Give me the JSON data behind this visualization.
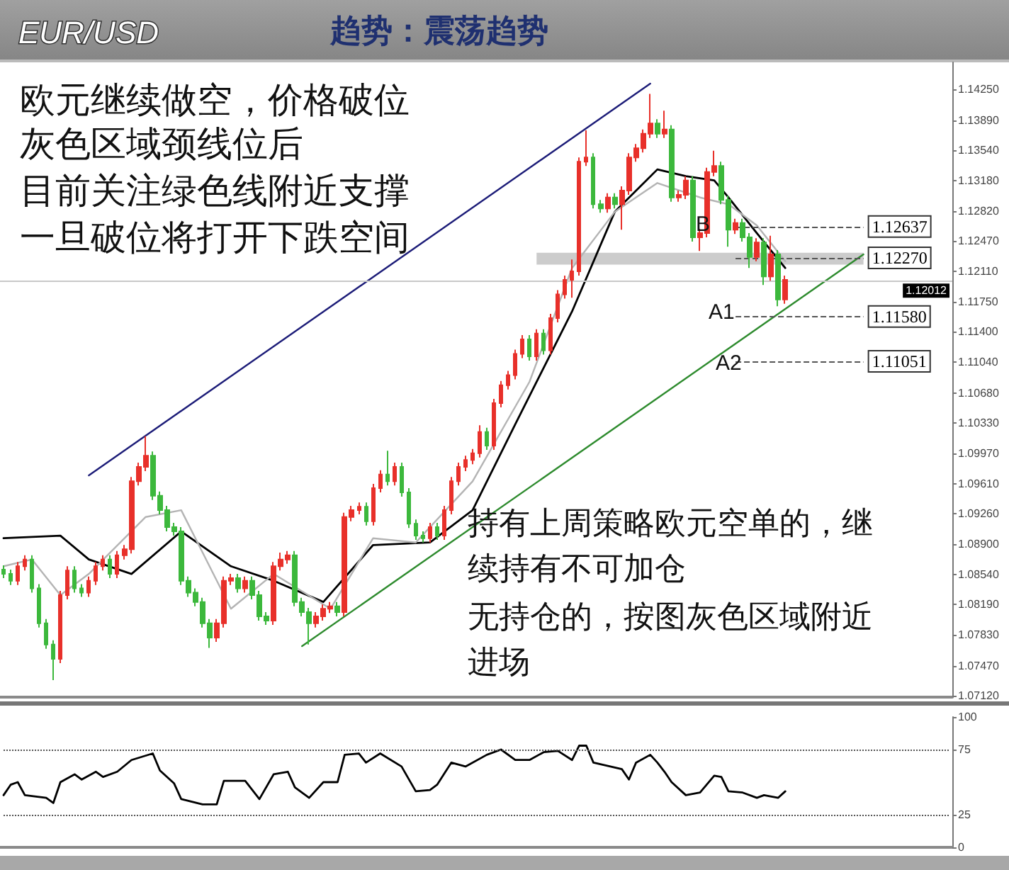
{
  "chart_data": [
    {
      "type": "candlestick",
      "title": "EUR/USD",
      "subtitle": "趋势：震荡趋势",
      "tick_labels": "y",
      "marker": "none",
      "categories": [
        null,
        null,
        null,
        null,
        null,
        null,
        null,
        null,
        null,
        null,
        null,
        null,
        null,
        null,
        null,
        null,
        null,
        null,
        null,
        null,
        null,
        null,
        null,
        null,
        null,
        null,
        null,
        null,
        null,
        null,
        null,
        null,
        null,
        null,
        null,
        null,
        null,
        null,
        null,
        null,
        null,
        null,
        null,
        null,
        null,
        null,
        null,
        null,
        null,
        null,
        null,
        null,
        null,
        null,
        null,
        null,
        null,
        null,
        null,
        null,
        null,
        null,
        null,
        null,
        null,
        null,
        null,
        null,
        null,
        null,
        null,
        null,
        null,
        null,
        null,
        null,
        null,
        null,
        null,
        null,
        null,
        null,
        null,
        null,
        null,
        null,
        null,
        null,
        null,
        null,
        null,
        null,
        null,
        null,
        null,
        null,
        null,
        null,
        null,
        null,
        null,
        null,
        null,
        null,
        null,
        null,
        null,
        null,
        null,
        null,
        null,
        null,
        null,
        null,
        null,
        null,
        null,
        null,
        null,
        null,
        null,
        null,
        null,
        null,
        null,
        null,
        null,
        null,
        null,
        null,
        null,
        null,
        null,
        null
      ],
      "ohlc": [
        [
          1.086,
          1.0865,
          1.085,
          1.0855
        ],
        [
          1.0855,
          1.086,
          1.0842,
          1.0847
        ],
        [
          1.0847,
          1.0869,
          1.0842,
          1.0864
        ],
        [
          1.0864,
          1.0877,
          1.0859,
          1.0872
        ],
        [
          1.0872,
          1.0877,
          1.0833,
          1.0838
        ],
        [
          1.0838,
          1.0843,
          1.0792,
          1.0797
        ],
        [
          1.0797,
          1.0802,
          1.0767,
          1.0772
        ],
        [
          1.0772,
          1.0777,
          1.073,
          1.0755
        ],
        [
          1.0755,
          1.0835,
          1.075,
          1.083
        ],
        [
          1.083,
          1.0864,
          1.0825,
          1.0859
        ],
        [
          1.0859,
          1.0864,
          1.0833,
          1.0838
        ],
        [
          1.0838,
          1.0843,
          1.0828,
          1.0833
        ],
        [
          1.0833,
          1.0852,
          1.0828,
          1.0847
        ],
        [
          1.0847,
          1.0869,
          1.0842,
          1.0864
        ],
        [
          1.0864,
          1.0877,
          1.0859,
          1.0872
        ],
        [
          1.0872,
          1.0877,
          1.085,
          1.0855
        ],
        [
          1.0855,
          1.0882,
          1.085,
          1.0877
        ],
        [
          1.0877,
          1.0889,
          1.0872,
          1.0884
        ],
        [
          1.0884,
          1.0969,
          1.0879,
          1.0964
        ],
        [
          1.0964,
          1.0986,
          1.0959,
          1.0981
        ],
        [
          1.0981,
          1.1017,
          1.0976,
          1.0994
        ],
        [
          1.0994,
          1.0999,
          1.0942,
          1.0947
        ],
        [
          1.0947,
          1.0952,
          1.0925,
          1.093
        ],
        [
          1.093,
          1.0935,
          1.0905,
          1.091
        ],
        [
          1.091,
          1.0915,
          1.09,
          1.0905
        ],
        [
          1.0905,
          1.091,
          1.0842,
          1.0847
        ],
        [
          1.0847,
          1.0852,
          1.0828,
          1.0833
        ],
        [
          1.0833,
          1.0838,
          1.0817,
          1.0822
        ],
        [
          1.0822,
          1.0827,
          1.0792,
          1.0797
        ],
        [
          1.0797,
          1.0802,
          1.0768,
          1.078
        ],
        [
          1.078,
          1.0802,
          1.0775,
          1.0797
        ],
        [
          1.0797,
          1.0852,
          1.0792,
          1.0847
        ],
        [
          1.0847,
          1.0855,
          1.0842,
          1.085
        ],
        [
          1.085,
          1.0855,
          1.0833,
          1.0838
        ],
        [
          1.0838,
          1.0852,
          1.0833,
          1.0847
        ],
        [
          1.0847,
          1.0852,
          1.0825,
          1.083
        ],
        [
          1.083,
          1.0835,
          1.08,
          1.0805
        ],
        [
          1.0805,
          1.081,
          1.0795,
          1.08
        ],
        [
          1.08,
          1.0869,
          1.0795,
          1.0864
        ],
        [
          1.0864,
          1.088,
          1.0859,
          1.0872
        ],
        [
          1.0872,
          1.0882,
          1.0867,
          1.0877
        ],
        [
          1.0877,
          1.0882,
          1.0817,
          1.0822
        ],
        [
          1.0822,
          1.0827,
          1.0805,
          1.081
        ],
        [
          1.081,
          1.0815,
          1.0772,
          1.0797
        ],
        [
          1.0797,
          1.081,
          1.0792,
          1.0805
        ],
        [
          1.0805,
          1.0819,
          1.08,
          1.0814
        ],
        [
          1.0814,
          1.0822,
          1.0809,
          1.0817
        ],
        [
          1.0817,
          1.0822,
          1.0805,
          1.081
        ],
        [
          1.081,
          1.0927,
          1.0805,
          1.0922
        ],
        [
          1.0922,
          1.0935,
          1.0917,
          1.093
        ],
        [
          1.093,
          1.0939,
          1.0925,
          1.0934
        ],
        [
          1.0934,
          1.0939,
          1.0912,
          1.0917
        ],
        [
          1.0917,
          1.0961,
          1.0912,
          1.0956
        ],
        [
          1.0956,
          1.0977,
          1.0951,
          1.0972
        ],
        [
          1.0972,
          1.1,
          1.0959,
          1.0964
        ],
        [
          1.0964,
          1.0986,
          1.0959,
          1.0981
        ],
        [
          1.0981,
          1.0986,
          1.0946,
          1.0951
        ],
        [
          1.0951,
          1.0956,
          1.0909,
          1.0914
        ],
        [
          1.0914,
          1.0919,
          1.0895,
          1.09
        ],
        [
          1.09,
          1.0905,
          1.0892,
          1.0897
        ],
        [
          1.0897,
          1.0915,
          1.0892,
          1.091
        ],
        [
          1.091,
          1.0915,
          1.0895,
          1.09
        ],
        [
          1.09,
          1.0935,
          1.0895,
          1.093
        ],
        [
          1.093,
          1.0969,
          1.0925,
          1.0964
        ],
        [
          1.0964,
          1.0986,
          1.0959,
          1.0981
        ],
        [
          1.0981,
          1.0994,
          1.0976,
          1.0989
        ],
        [
          1.0989,
          1.1002,
          1.0984,
          1.0997
        ],
        [
          1.0997,
          1.103,
          1.0992,
          1.1022
        ],
        [
          1.1022,
          1.1027,
          1.1001,
          1.1006
        ],
        [
          1.1006,
          1.1061,
          1.1001,
          1.1056
        ],
        [
          1.1056,
          1.1082,
          1.1051,
          1.1077
        ],
        [
          1.1077,
          1.1094,
          1.1072,
          1.1089
        ],
        [
          1.1089,
          1.1119,
          1.1084,
          1.1114
        ],
        [
          1.1114,
          1.1136,
          1.1109,
          1.1131
        ],
        [
          1.1131,
          1.1136,
          1.1106,
          1.1111
        ],
        [
          1.1111,
          1.1143,
          1.1106,
          1.1138
        ],
        [
          1.1138,
          1.1143,
          1.1113,
          1.1118
        ],
        [
          1.1118,
          1.1161,
          1.1113,
          1.1156
        ],
        [
          1.1156,
          1.1189,
          1.1151,
          1.1184
        ],
        [
          1.1184,
          1.1206,
          1.1179,
          1.1201
        ],
        [
          1.1201,
          1.1225,
          1.118,
          1.1211
        ],
        [
          1.1211,
          1.1345,
          1.1206,
          1.134
        ],
        [
          1.134,
          1.1377,
          1.1335,
          1.1345
        ],
        [
          1.1345,
          1.135,
          1.1285,
          1.129
        ],
        [
          1.129,
          1.1295,
          1.128,
          1.1285
        ],
        [
          1.1285,
          1.1303,
          1.128,
          1.1298
        ],
        [
          1.1298,
          1.1303,
          1.1285,
          1.129
        ],
        [
          1.129,
          1.1311,
          1.126,
          1.1306
        ],
        [
          1.1306,
          1.135,
          1.1301,
          1.1345
        ],
        [
          1.1345,
          1.1361,
          1.134,
          1.1356
        ],
        [
          1.1356,
          1.1378,
          1.1351,
          1.1373
        ],
        [
          1.1373,
          1.142,
          1.1368,
          1.1385
        ],
        [
          1.1385,
          1.139,
          1.1368,
          1.1373
        ],
        [
          1.1373,
          1.14,
          1.1368,
          1.1378
        ],
        [
          1.1378,
          1.1383,
          1.1293,
          1.1298
        ],
        [
          1.1298,
          1.1306,
          1.1293,
          1.1301
        ],
        [
          1.1301,
          1.1323,
          1.1296,
          1.1318
        ],
        [
          1.1318,
          1.1323,
          1.1246,
          1.1251
        ],
        [
          1.1251,
          1.1261,
          1.1235,
          1.1256
        ],
        [
          1.1256,
          1.1333,
          1.1251,
          1.1328
        ],
        [
          1.1328,
          1.1353,
          1.1323,
          1.1335
        ],
        [
          1.1335,
          1.134,
          1.129,
          1.1295
        ],
        [
          1.1295,
          1.13,
          1.124,
          1.126
        ],
        [
          1.126,
          1.1273,
          1.1255,
          1.1268
        ],
        [
          1.1268,
          1.1273,
          1.1246,
          1.1251
        ],
        [
          1.1251,
          1.1256,
          1.1215,
          1.1228
        ],
        [
          1.1228,
          1.125,
          1.1223,
          1.1245
        ],
        [
          1.1245,
          1.125,
          1.1195,
          1.1205
        ],
        [
          1.1205,
          1.1253,
          1.12,
          1.1231
        ],
        [
          1.1231,
          1.1236,
          1.117,
          1.1178
        ],
        [
          1.1178,
          1.1206,
          1.1173,
          1.1201
        ],
        null,
        null,
        null,
        null,
        null,
        null,
        null,
        null,
        null,
        null,
        null,
        null,
        null,
        null,
        null,
        null,
        null,
        null,
        null,
        null,
        null,
        null,
        null
      ],
      "colors": [
        "#3cb83c",
        "#3cb83c",
        "#e8302a",
        "#e8302a",
        "#3cb83c",
        "#3cb83c",
        "#3cb83c",
        "#3cb83c",
        "#e8302a",
        "#e8302a",
        "#3cb83c",
        "#3cb83c",
        "#e8302a",
        "#e8302a",
        "#e8302a",
        "#3cb83c",
        "#e8302a",
        "#e8302a",
        "#e8302a",
        "#e8302a",
        "#e8302a",
        "#3cb83c",
        "#3cb83c",
        "#3cb83c",
        "#3cb83c",
        "#3cb83c",
        "#3cb83c",
        "#3cb83c",
        "#3cb83c",
        "#3cb83c",
        "#e8302a",
        "#e8302a",
        "#e8302a",
        "#3cb83c",
        "#e8302a",
        "#3cb83c",
        "#3cb83c",
        "#3cb83c",
        "#e8302a",
        "#e8302a",
        "#e8302a",
        "#3cb83c",
        "#3cb83c",
        "#3cb83c",
        "#e8302a",
        "#e8302a",
        "#e8302a",
        "#3cb83c",
        "#e8302a",
        "#e8302a",
        "#e8302a",
        "#3cb83c",
        "#e8302a",
        "#e8302a",
        "#3cb83c",
        "#e8302a",
        "#3cb83c",
        "#3cb83c",
        "#3cb83c",
        "#3cb83c",
        "#e8302a",
        "#3cb83c",
        "#e8302a",
        "#e8302a",
        "#e8302a",
        "#e8302a",
        "#e8302a",
        "#e8302a",
        "#3cb83c",
        "#e8302a",
        "#e8302a",
        "#e8302a",
        "#e8302a",
        "#e8302a",
        "#3cb83c",
        "#e8302a",
        "#3cb83c",
        "#e8302a",
        "#e8302a",
        "#e8302a",
        "#e8302a",
        "#e8302a",
        "#e8302a",
        "#3cb83c",
        "#3cb83c",
        "#e8302a",
        "#3cb83c",
        "#e8302a",
        "#e8302a",
        "#e8302a",
        "#e8302a",
        "#e8302a",
        "#3cb83c",
        "#e8302a",
        "#3cb83c",
        "#e8302a",
        "#e8302a",
        "#3cb83c",
        "#e8302a",
        "#e8302a",
        "#e8302a",
        "#3cb83c",
        "#3cb83c",
        "#e8302a",
        "#3cb83c",
        "#3cb83c",
        "#e8302a",
        "#3cb83c",
        "#e8302a",
        "#3cb83c",
        "#e8302a",
        null,
        null,
        null,
        null,
        null,
        null,
        null,
        null,
        null,
        null,
        null,
        null,
        null,
        null,
        null,
        null,
        null,
        null,
        null,
        null,
        null,
        null,
        null
      ],
      "series": [
        {
          "type": "line",
          "color": "#000000",
          "values": [
            1.0897,
            null,
            null,
            null,
            null,
            null,
            null,
            null,
            1.09,
            null,
            null,
            null,
            1.0872,
            null,
            null,
            null,
            null,
            null,
            1.0855,
            null,
            null,
            null,
            null,
            null,
            null,
            1.0905,
            null,
            null,
            null,
            null,
            null,
            null,
            1.0864,
            null,
            null,
            null,
            null,
            null,
            1.0847,
            null,
            null,
            null,
            null,
            null,
            null,
            1.0822,
            null,
            null,
            null,
            null,
            null,
            null,
            1.0889,
            null,
            null,
            null,
            null,
            null,
            null,
            null,
            1.0892,
            null,
            null,
            null,
            null,
            null,
            1.093,
            null,
            null,
            null,
            null,
            null,
            1.1031,
            null,
            null,
            null,
            null,
            null,
            null,
            null,
            1.1164,
            null,
            null,
            null,
            null,
            null,
            1.1281,
            null,
            null,
            null,
            null,
            null,
            1.1331,
            null,
            null,
            null,
            1.1323,
            null,
            null,
            null,
            1.1318,
            null,
            1.1298,
            null,
            null,
            null,
            1.1256,
            null,
            null,
            null,
            1.1215,
            null,
            null,
            null,
            null,
            null,
            null,
            null,
            null,
            null,
            null,
            null,
            null,
            null,
            null,
            null,
            null,
            null,
            null,
            null,
            null,
            null,
            null,
            null
          ]
        },
        {
          "type": "line",
          "color": "#b4b4b4",
          "values": [
            1.0864,
            null,
            null,
            null,
            1.0872,
            null,
            null,
            null,
            1.083,
            null,
            null,
            null,
            1.0855,
            null,
            null,
            null,
            null,
            null,
            null,
            null,
            1.0922,
            null,
            null,
            null,
            null,
            1.093,
            null,
            null,
            null,
            null,
            null,
            null,
            1.0814,
            null,
            null,
            null,
            null,
            null,
            1.0855,
            null,
            null,
            null,
            null,
            null,
            null,
            null,
            1.0814,
            null,
            null,
            null,
            null,
            null,
            1.0897,
            null,
            null,
            null,
            null,
            null,
            1.0892,
            null,
            null,
            null,
            null,
            null,
            null,
            null,
            1.0964,
            null,
            null,
            null,
            null,
            null,
            null,
            null,
            1.1081,
            null,
            null,
            null,
            null,
            null,
            1.1215,
            null,
            null,
            null,
            null,
            null,
            1.1281,
            null,
            null,
            null,
            null,
            null,
            1.1315,
            null,
            null,
            null,
            null,
            null,
            1.1298,
            null,
            null,
            null,
            1.129,
            null,
            null,
            null,
            1.1265,
            null,
            null,
            null,
            1.1223,
            null,
            null,
            null,
            null,
            null,
            null,
            null,
            null,
            null,
            null,
            null,
            null,
            null,
            null,
            null,
            null,
            null,
            null,
            null,
            null,
            null,
            null,
            null
          ]
        },
        {
          "type": "line",
          "color": "#1c1c78",
          "values": [
            null,
            null,
            null,
            null,
            null,
            null,
            null,
            null,
            null,
            null,
            null,
            null,
            1.0971,
            null,
            null,
            null,
            null,
            null,
            null,
            null,
            null,
            null,
            null,
            null,
            null,
            null,
            null,
            null,
            null,
            null,
            null,
            null,
            null,
            null,
            null,
            null,
            null,
            null,
            null,
            null,
            null,
            null,
            null,
            null,
            null,
            null,
            null,
            null,
            null,
            null,
            null,
            null,
            null,
            null,
            null,
            null,
            null,
            null,
            null,
            null,
            null,
            null,
            null,
            null,
            null,
            null,
            null,
            null,
            null,
            null,
            null,
            null,
            null,
            null,
            null,
            null,
            null,
            null,
            null,
            null,
            null,
            null,
            null,
            null,
            null,
            null,
            null,
            null,
            null,
            null,
            null,
            1.1432,
            null,
            null,
            null,
            null,
            null,
            null,
            null,
            null,
            null,
            null,
            null,
            null,
            null,
            null,
            null,
            null,
            null,
            null,
            null,
            null,
            null,
            null,
            null,
            null,
            null,
            null,
            null,
            null,
            null,
            null,
            null,
            null,
            null,
            null,
            null,
            null,
            null,
            null,
            null,
            null,
            null,
            null
          ]
        },
        {
          "type": "line",
          "color": "#2e8b2e",
          "values": [
            null,
            null,
            null,
            null,
            null,
            null,
            null,
            null,
            null,
            null,
            null,
            null,
            null,
            null,
            null,
            null,
            null,
            null,
            null,
            null,
            null,
            null,
            null,
            null,
            null,
            null,
            null,
            null,
            null,
            null,
            null,
            null,
            null,
            null,
            null,
            null,
            null,
            null,
            null,
            null,
            null,
            null,
            1.077,
            null,
            null,
            null,
            null,
            null,
            null,
            null,
            null,
            null,
            null,
            null,
            null,
            null,
            null,
            null,
            null,
            null,
            null,
            null,
            null,
            null,
            null,
            null,
            null,
            null,
            null,
            null,
            null,
            null,
            null,
            null,
            null,
            null,
            null,
            null,
            null,
            null,
            null,
            null,
            null,
            null,
            null,
            null,
            null,
            null,
            null,
            null,
            null,
            null,
            null,
            null,
            null,
            null,
            null,
            null,
            null,
            null,
            null,
            null,
            null,
            null,
            null,
            null,
            null,
            null,
            null,
            null,
            null,
            null,
            null,
            null,
            null,
            null,
            null,
            null,
            null,
            null,
            null,
            1.1231,
            null,
            null,
            null,
            null,
            null,
            null,
            null,
            null,
            null,
            null,
            null,
            null
          ]
        }
      ],
      "ylim": [
        1.071,
        1.1457
      ],
      "yticks": [
        {
          "value": 1.0712,
          "label": "1.07120"
        },
        {
          "value": 1.0747,
          "label": "1.07470"
        },
        {
          "value": 1.0783,
          "label": "1.07830"
        },
        {
          "value": 1.0819,
          "label": "1.08190"
        },
        {
          "value": 1.0854,
          "label": "1.08540"
        },
        {
          "value": 1.089,
          "label": "1.08900"
        },
        {
          "value": 1.0926,
          "label": "1.09260"
        },
        {
          "value": 1.0961,
          "label": "1.09610"
        },
        {
          "value": 1.0997,
          "label": "1.09970"
        },
        {
          "value": 1.1033,
          "label": "1.10330"
        },
        {
          "value": 1.1068,
          "label": "1.10680"
        },
        {
          "value": 1.1104,
          "label": "1.11040"
        },
        {
          "value": 1.114,
          "label": "1.11400"
        },
        {
          "value": 1.1175,
          "label": "1.11750"
        },
        {
          "value": 1.1211,
          "label": "1.12110"
        },
        {
          "value": 1.1247,
          "label": "1.12470"
        },
        {
          "value": 1.1282,
          "label": "1.12820"
        },
        {
          "value": 1.1318,
          "label": "1.13180"
        },
        {
          "value": 1.1354,
          "label": "1.13540"
        },
        {
          "value": 1.1389,
          "label": "1.13890"
        },
        {
          "value": 1.1425,
          "label": "1.14250"
        }
      ],
      "ref_lines": [
        {
          "axis": "y",
          "value": 1.12637,
          "label": "1.12637",
          "color": "#555555",
          "line_style": "dashed"
        },
        {
          "axis": "y",
          "value": 1.1227,
          "label": "1.12270",
          "color": "#555555",
          "line_style": "dashed"
        },
        {
          "axis": "y",
          "value": 1.1158,
          "label": "1.11580",
          "color": "#555555",
          "line_style": "dashed"
        },
        {
          "axis": "y",
          "value": 1.11051,
          "label": "1.11051",
          "color": "#555555",
          "line_style": "dashed"
        },
        {
          "axis": "y",
          "value": 1.12012,
          "label": "1.12012",
          "color": "#c8c8c8",
          "line_style": "solid"
        }
      ],
      "bands": [
        {
          "axis": "y",
          "from": 1.1219,
          "to": 1.1233,
          "color": "#cccccc"
        }
      ],
      "annotations": [
        "欧元继续做空，价格破位",
        "灰色区域颈线位后",
        "目前关注绿色线附近支撑",
        "一旦破位将打开下跌空间",
        "持有上周策略欧元空单的，继续持有不可加仓",
        "无持仓的，按图灰色区域附近进场",
        "B",
        "A1",
        "A2"
      ]
    },
    {
      "type": "line",
      "tick_labels": "y",
      "marker": "none",
      "categories": [
        null,
        null,
        null,
        null,
        null,
        null,
        null,
        null,
        null,
        null,
        null,
        null,
        null,
        null,
        null,
        null,
        null,
        null,
        null,
        null,
        null,
        null,
        null,
        null,
        null,
        null,
        null,
        null,
        null,
        null,
        null,
        null,
        null,
        null,
        null,
        null,
        null,
        null,
        null,
        null,
        null,
        null,
        null,
        null,
        null,
        null,
        null,
        null,
        null,
        null,
        null,
        null,
        null,
        null,
        null,
        null,
        null,
        null,
        null,
        null,
        null,
        null,
        null,
        null,
        null,
        null,
        null,
        null,
        null,
        null,
        null,
        null,
        null,
        null,
        null,
        null,
        null,
        null,
        null,
        null,
        null,
        null,
        null,
        null,
        null,
        null,
        null,
        null,
        null,
        null,
        null,
        null,
        null,
        null,
        null,
        null,
        null,
        null,
        null,
        null,
        null,
        null,
        null,
        null,
        null,
        null,
        null,
        null,
        null,
        null,
        null,
        null,
        null,
        null,
        null,
        null,
        null,
        null,
        null,
        null,
        null,
        null,
        null,
        null,
        null,
        null,
        null,
        null,
        null,
        null,
        null,
        null,
        null,
        null
      ],
      "series": [
        {
          "color": "#000000",
          "values": [
            40,
            48,
            50,
            40,
            null,
            null,
            38,
            34,
            50,
            null,
            56,
            52,
            null,
            58,
            54,
            null,
            58,
            null,
            67,
            null,
            null,
            72,
            59,
            null,
            49,
            37,
            null,
            null,
            33,
            null,
            33,
            51,
            null,
            null,
            51,
            null,
            37,
            null,
            56,
            null,
            58,
            46,
            null,
            38,
            null,
            50,
            null,
            50,
            71,
            null,
            72,
            65,
            null,
            72,
            null,
            null,
            62,
            null,
            43,
            null,
            44,
            48,
            null,
            65,
            null,
            62,
            null,
            null,
            71,
            null,
            75,
            null,
            67,
            null,
            67,
            null,
            73,
            null,
            74,
            null,
            67,
            78,
            78,
            65,
            null,
            null,
            null,
            60,
            52,
            65,
            null,
            71,
            65,
            58,
            50,
            null,
            40,
            null,
            42,
            null,
            55,
            54,
            43,
            null,
            42,
            null,
            38,
            40,
            null,
            38,
            43,
            null,
            null,
            null,
            null,
            null,
            null,
            null,
            null,
            null,
            null,
            null,
            null,
            null,
            null,
            null,
            null,
            null,
            null,
            null,
            null,
            null,
            null,
            null
          ]
        }
      ],
      "ylim": [
        0,
        100
      ],
      "yticks": [
        0,
        25,
        75,
        100
      ],
      "ref_lines": [
        {
          "axis": "y",
          "value": 25,
          "color": "#555555",
          "line_style": "dotted"
        },
        {
          "axis": "y",
          "value": 75,
          "color": "#555555",
          "line_style": "dotted"
        }
      ]
    }
  ]
}
